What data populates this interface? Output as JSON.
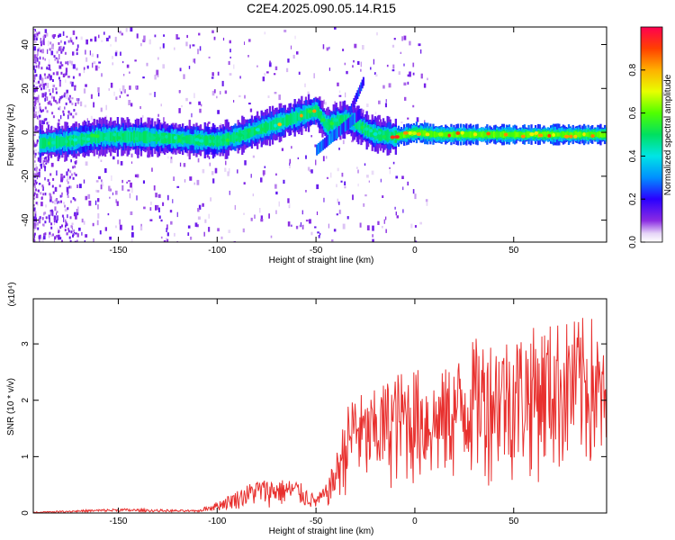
{
  "title": "C2E4.2025.090.05.14.R15",
  "chart_data": [
    {
      "type": "heatmap",
      "title": "C2E4.2025.090.05.14.R15",
      "xlabel": "Height of straight line (km)",
      "ylabel": "Frequency (Hz)",
      "xlim": [
        -193,
        97
      ],
      "ylim": [
        -50,
        48
      ],
      "xticks": [
        -150,
        -100,
        -50,
        0,
        50
      ],
      "yticks": [
        -40,
        -20,
        0,
        20,
        40
      ],
      "colorbar": {
        "label": "Normalized spectral amplitude",
        "range": [
          0.0,
          1.0
        ],
        "ticks": [
          0.0,
          0.2,
          0.4,
          0.6,
          0.8
        ]
      },
      "ridge": {
        "x": [
          -190,
          -175,
          -160,
          -140,
          -120,
          -100,
          -90,
          -80,
          -70,
          -60,
          -50,
          -45,
          -40,
          -35,
          -30,
          -25,
          -20,
          -10,
          0,
          10,
          30,
          50,
          70,
          97
        ],
        "frequency": [
          -5,
          -4,
          -2,
          -2,
          -3,
          -4,
          -2,
          1,
          4,
          7,
          10,
          3,
          5,
          6,
          4,
          1,
          -1,
          -2,
          0,
          -1,
          -1,
          -1,
          -1,
          -1
        ]
      },
      "grid": false
    },
    {
      "type": "line",
      "xlabel": "Height of straight line (km)",
      "ylabel": "SNR (10 * v/v)",
      "y_multiplier": "(x10⁴)",
      "xlim": [
        -193,
        97
      ],
      "ylim": [
        0,
        3.8
      ],
      "xticks": [
        -150,
        -100,
        -50,
        0,
        50
      ],
      "yticks": [
        0,
        1,
        2,
        3
      ],
      "series_color": "#e8302e",
      "envelope": {
        "x": [
          -193,
          -150,
          -110,
          -100,
          -90,
          -80,
          -60,
          -50,
          -45,
          -40,
          -35,
          -30,
          -25,
          -20,
          -10,
          0,
          10,
          20,
          30,
          50,
          70,
          90,
          97
        ],
        "y": [
          0.02,
          0.08,
          0.05,
          0.2,
          0.4,
          0.6,
          0.6,
          0.3,
          0.5,
          1.0,
          1.8,
          2.3,
          2.0,
          2.2,
          2.5,
          2.6,
          2.4,
          2.7,
          3.1,
          3.2,
          3.4,
          3.5,
          2.7
        ]
      },
      "grid": false
    }
  ]
}
